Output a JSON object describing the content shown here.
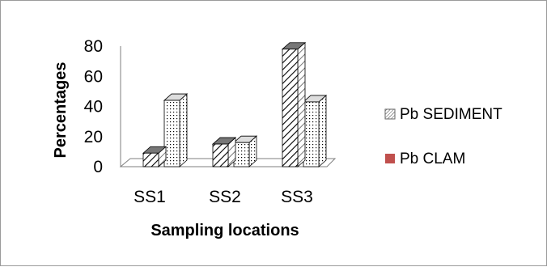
{
  "chart_data": {
    "type": "bar",
    "style": "3d-clustered-column",
    "categories": [
      "SS1",
      "SS2",
      "SS3"
    ],
    "series": [
      {
        "name": "Pb SEDIMENT",
        "values": [
          9,
          15,
          78
        ],
        "fill": "diagonal-hatch",
        "color": "#000000"
      },
      {
        "name": "Pb CLAM",
        "values": [
          44,
          16,
          43
        ],
        "fill": "dotted",
        "color": "#c0504d"
      }
    ],
    "xlabel": "Sampling locations",
    "ylabel": "Percentages",
    "ylim": [
      0,
      80
    ],
    "yticks": [
      "0",
      "20",
      "40",
      "60",
      "80"
    ],
    "grid": false,
    "legend_position": "right"
  }
}
